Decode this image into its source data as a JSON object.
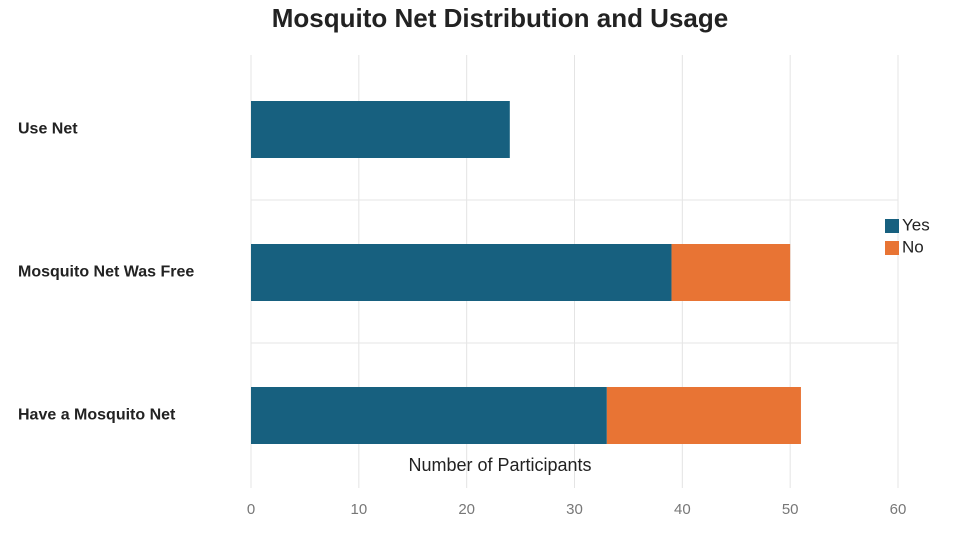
{
  "chart_data": {
    "type": "stacked-barh",
    "title": "Mosquito Net Distribution and Usage",
    "x_label": "Number of Participants",
    "categories": [
      "Use Net",
      "Mosquito Net Was Free",
      "Have a Mosquito Net"
    ],
    "series": [
      {
        "name": "Yes",
        "color": "#17607f",
        "values": [
          24,
          39,
          33
        ]
      },
      {
        "name": "No",
        "color": "#e87434",
        "values": [
          null,
          11,
          18
        ]
      }
    ],
    "xlim": [
      0,
      60
    ],
    "xticks": [
      0,
      10,
      20,
      30,
      40,
      50,
      60
    ],
    "grid": true,
    "legend": "right"
  }
}
